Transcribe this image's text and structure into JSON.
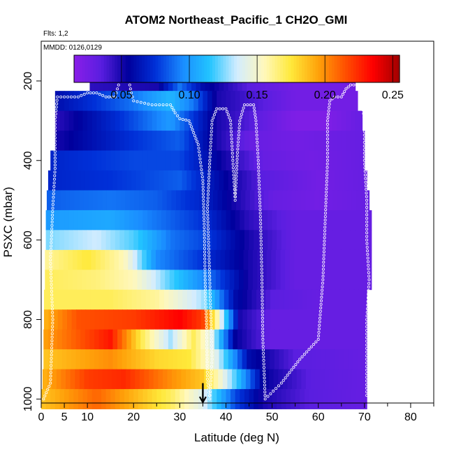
{
  "chart_data": {
    "type": "heatmap",
    "title": "ATOM2 Northeast_Pacific_1 CH2O_GMI",
    "flights_label": "Flts: 1,2",
    "dates_label": "MMDD: 0126,0129",
    "xlabel": "Latitude (deg N)",
    "ylabel": "PSXC (mbar)",
    "xlim": [
      0,
      85
    ],
    "ylim": [
      1010,
      100
    ],
    "x_ticks": [
      0,
      5,
      10,
      20,
      30,
      40,
      50,
      60,
      70,
      80
    ],
    "y_ticks": [
      200,
      400,
      600,
      800,
      1000
    ],
    "colorbar": {
      "range": [
        0.015,
        0.255
      ],
      "ticks": [
        0.05,
        0.1,
        0.15,
        0.2,
        0.25
      ],
      "tick_labels": [
        "0.05",
        "0.10",
        "0.15",
        "0.20",
        "0.25"
      ],
      "colors": [
        "#8a1ee8",
        "#5a1ee0",
        "#00009c",
        "#0030d8",
        "#1a8cff",
        "#22c4ff",
        "#d2ecff",
        "#fff8bc",
        "#ffe93a",
        "#ffa20a",
        "#ff5000",
        "#ff0000",
        "#a00000"
      ]
    },
    "arrow_latitude": 35,
    "rows": [
      {
        "p": 200,
        "x0": 10.5,
        "x1": 68,
        "profile": [
          [
            10.5,
            0.045
          ],
          [
            25,
            0.05
          ],
          [
            30,
            0.09
          ],
          [
            35,
            0.06
          ],
          [
            45,
            0.035
          ],
          [
            55,
            0.025
          ],
          [
            68,
            0.025
          ]
        ]
      },
      {
        "p": 250,
        "x0": 3,
        "x1": 68.5,
        "profile": [
          [
            3,
            0.06
          ],
          [
            20,
            0.09
          ],
          [
            28,
            0.11
          ],
          [
            33,
            0.09
          ],
          [
            38,
            0.05
          ],
          [
            45,
            0.04
          ],
          [
            55,
            0.025
          ],
          [
            68.5,
            0.025
          ]
        ]
      },
      {
        "p": 300,
        "x0": 3,
        "x1": 69.5,
        "profile": [
          [
            3,
            0.045
          ],
          [
            15,
            0.07
          ],
          [
            28,
            0.1
          ],
          [
            32,
            0.08
          ],
          [
            38,
            0.05
          ],
          [
            46,
            0.035
          ],
          [
            55,
            0.02
          ],
          [
            62,
            0.02
          ],
          [
            69.5,
            0.03
          ]
        ]
      },
      {
        "p": 350,
        "x0": 3,
        "x1": 70,
        "profile": [
          [
            3,
            0.05
          ],
          [
            20,
            0.075
          ],
          [
            30,
            0.085
          ],
          [
            38,
            0.05
          ],
          [
            45,
            0.03
          ],
          [
            55,
            0.025
          ],
          [
            70,
            0.03
          ]
        ]
      },
      {
        "p": 400,
        "x0": 2,
        "x1": 70,
        "profile": [
          [
            2,
            0.07
          ],
          [
            20,
            0.08
          ],
          [
            30,
            0.08
          ],
          [
            40,
            0.05
          ],
          [
            48,
            0.03
          ],
          [
            58,
            0.025
          ],
          [
            70,
            0.03
          ]
        ]
      },
      {
        "p": 450,
        "x0": 1.5,
        "x1": 70.5,
        "profile": [
          [
            1.5,
            0.07
          ],
          [
            15,
            0.075
          ],
          [
            30,
            0.085
          ],
          [
            40,
            0.055
          ],
          [
            48,
            0.035
          ],
          [
            60,
            0.025
          ],
          [
            70.5,
            0.03
          ]
        ]
      },
      {
        "p": 500,
        "x0": 1.2,
        "x1": 71,
        "profile": [
          [
            1.2,
            0.085
          ],
          [
            15,
            0.09
          ],
          [
            25,
            0.085
          ],
          [
            35,
            0.07
          ],
          [
            42,
            0.05
          ],
          [
            50,
            0.03
          ],
          [
            60,
            0.025
          ],
          [
            71,
            0.03
          ]
        ]
      },
      {
        "p": 550,
        "x0": 1,
        "x1": 71.5,
        "profile": [
          [
            1,
            0.1
          ],
          [
            15,
            0.105
          ],
          [
            25,
            0.09
          ],
          [
            35,
            0.075
          ],
          [
            45,
            0.045
          ],
          [
            55,
            0.03
          ],
          [
            71.5,
            0.03
          ]
        ]
      },
      {
        "p": 600,
        "x0": 1,
        "x1": 71.5,
        "profile": [
          [
            1,
            0.125
          ],
          [
            12,
            0.135
          ],
          [
            20,
            0.12
          ],
          [
            28,
            0.09
          ],
          [
            35,
            0.08
          ],
          [
            45,
            0.05
          ],
          [
            55,
            0.03
          ],
          [
            71.5,
            0.03
          ]
        ]
      },
      {
        "p": 650,
        "x0": 0.8,
        "x1": 71.5,
        "profile": [
          [
            0.8,
            0.16
          ],
          [
            10,
            0.175
          ],
          [
            18,
            0.155
          ],
          [
            25,
            0.095
          ],
          [
            35,
            0.075
          ],
          [
            45,
            0.05
          ],
          [
            55,
            0.03
          ],
          [
            71.5,
            0.03
          ]
        ]
      },
      {
        "p": 700,
        "x0": 0.8,
        "x1": 71.5,
        "profile": [
          [
            0.8,
            0.17
          ],
          [
            12,
            0.165
          ],
          [
            20,
            0.155
          ],
          [
            28,
            0.12
          ],
          [
            35,
            0.095
          ],
          [
            45,
            0.05
          ],
          [
            55,
            0.03
          ],
          [
            71.5,
            0.03
          ]
        ]
      },
      {
        "p": 750,
        "x0": 0.6,
        "x1": 70.5,
        "profile": [
          [
            0.6,
            0.17
          ],
          [
            15,
            0.17
          ],
          [
            25,
            0.16
          ],
          [
            35,
            0.13
          ],
          [
            42,
            0.06
          ],
          [
            50,
            0.035
          ],
          [
            60,
            0.03
          ],
          [
            70.5,
            0.03
          ]
        ]
      },
      {
        "p": 800,
        "x0": 0.6,
        "x1": 70.5,
        "profile": [
          [
            0.6,
            0.19
          ],
          [
            8,
            0.215
          ],
          [
            20,
            0.22
          ],
          [
            30,
            0.235
          ],
          [
            35,
            0.22
          ],
          [
            38,
            0.16
          ],
          [
            43,
            0.05
          ],
          [
            50,
            0.03
          ],
          [
            70.5,
            0.03
          ]
        ]
      },
      {
        "p": 850,
        "x0": 0.5,
        "x1": 70.5,
        "profile": [
          [
            0.5,
            0.195
          ],
          [
            15,
            0.23
          ],
          [
            22,
            0.17
          ],
          [
            28,
            0.13
          ],
          [
            33,
            0.17
          ],
          [
            37,
            0.14
          ],
          [
            42,
            0.055
          ],
          [
            50,
            0.03
          ],
          [
            70.5,
            0.03
          ]
        ]
      },
      {
        "p": 900,
        "x0": 0.5,
        "x1": 70.5,
        "profile": [
          [
            0.5,
            0.185
          ],
          [
            15,
            0.2
          ],
          [
            25,
            0.18
          ],
          [
            32,
            0.175
          ],
          [
            38,
            0.14
          ],
          [
            45,
            0.06
          ],
          [
            55,
            0.035
          ],
          [
            70.5,
            0.03
          ]
        ]
      },
      {
        "p": 950,
        "x0": 0.3,
        "x1": 70.5,
        "profile": [
          [
            0.3,
            0.19
          ],
          [
            10,
            0.22
          ],
          [
            18,
            0.225
          ],
          [
            28,
            0.2
          ],
          [
            35,
            0.185
          ],
          [
            42,
            0.12
          ],
          [
            48,
            0.055
          ],
          [
            58,
            0.035
          ],
          [
            70.5,
            0.03
          ]
        ]
      },
      {
        "p": 1000,
        "x0": 0,
        "x1": 70.5,
        "profile": [
          [
            0,
            0.185
          ],
          [
            12,
            0.21
          ],
          [
            20,
            0.19
          ],
          [
            28,
            0.17
          ],
          [
            35,
            0.14
          ],
          [
            42,
            0.08
          ],
          [
            48,
            0.05
          ],
          [
            58,
            0.035
          ],
          [
            70.5,
            0.03
          ]
        ]
      }
    ],
    "flight_track": [
      [
        [
          0.5,
          1000
        ],
        [
          2,
          960
        ],
        [
          2.5,
          800
        ],
        [
          2,
          650
        ],
        [
          2.5,
          520
        ],
        [
          3,
          420
        ],
        [
          3,
          300
        ],
        [
          3.5,
          240
        ],
        [
          8,
          240
        ],
        [
          10,
          230
        ],
        [
          12,
          230
        ],
        [
          14,
          240
        ],
        [
          16,
          240
        ],
        [
          16.5,
          220
        ],
        [
          17,
          200
        ],
        [
          19,
          200
        ],
        [
          19.5,
          230
        ],
        [
          20,
          250
        ],
        [
          24,
          260
        ],
        [
          28,
          260
        ],
        [
          29,
          280
        ],
        [
          30,
          295
        ],
        [
          32,
          300
        ],
        [
          33,
          330
        ],
        [
          34,
          360
        ],
        [
          35,
          450
        ],
        [
          35.3,
          560
        ],
        [
          35.5,
          700
        ],
        [
          35.8,
          820
        ],
        [
          36,
          950
        ],
        [
          36.5,
          1000
        ]
      ],
      [
        [
          36.5,
          1000
        ],
        [
          37,
          900
        ],
        [
          36.5,
          700
        ],
        [
          36,
          520
        ],
        [
          36.5,
          400
        ],
        [
          37,
          300
        ],
        [
          38,
          270
        ],
        [
          40,
          270
        ],
        [
          41,
          300
        ],
        [
          41.5,
          400
        ],
        [
          42,
          500
        ],
        [
          42.5,
          380
        ],
        [
          43,
          300
        ],
        [
          44,
          260
        ],
        [
          46,
          260
        ],
        [
          46.5,
          300
        ],
        [
          47,
          400
        ],
        [
          47.5,
          550
        ],
        [
          47.8,
          700
        ],
        [
          48,
          850
        ],
        [
          48.5,
          1000
        ],
        [
          52,
          960
        ],
        [
          56,
          900
        ],
        [
          60,
          850
        ],
        [
          61,
          700
        ],
        [
          61.5,
          550
        ],
        [
          62,
          400
        ],
        [
          62,
          300
        ],
        [
          62.5,
          250
        ],
        [
          63.5,
          240
        ],
        [
          65,
          240
        ],
        [
          66,
          220
        ],
        [
          67,
          210
        ],
        [
          69,
          210
        ],
        [
          70,
          300
        ],
        [
          70,
          400
        ],
        [
          70.5,
          500
        ],
        [
          70.5,
          600
        ],
        [
          71,
          700
        ],
        [
          70.5,
          800
        ],
        [
          70.5,
          900
        ],
        [
          70.5,
          1000
        ]
      ]
    ]
  }
}
